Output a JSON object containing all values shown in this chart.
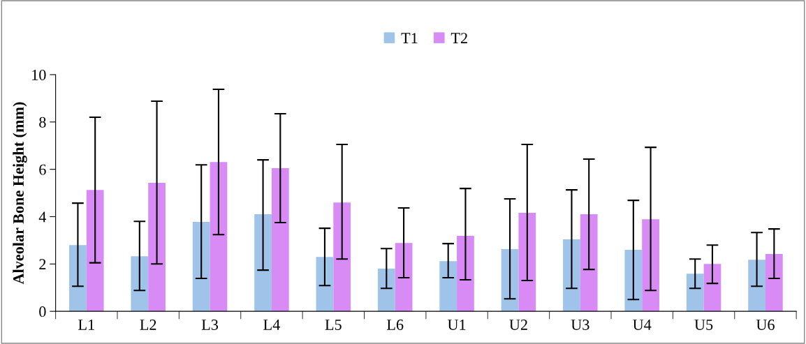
{
  "chart_data": {
    "type": "bar",
    "ylabel": "Alveolar Bone Height (mm)",
    "categories": [
      "L1",
      "L2",
      "L3",
      "L4",
      "L5",
      "L6",
      "U1",
      "U2",
      "U3",
      "U4",
      "U5",
      "U6"
    ],
    "series": [
      {
        "name": "T1",
        "color": "#9fc3e9",
        "values": [
          2.8,
          2.33,
          3.78,
          4.1,
          2.3,
          1.8,
          2.12,
          2.63,
          3.04,
          2.6,
          1.59,
          2.18
        ],
        "errors": [
          [
            1.06,
            4.57
          ],
          [
            0.88,
            3.8
          ],
          [
            1.39,
            6.19
          ],
          [
            1.74,
            6.4
          ],
          [
            1.09,
            3.51
          ],
          [
            0.97,
            2.65
          ],
          [
            1.42,
            2.86
          ],
          [
            0.53,
            4.75
          ],
          [
            0.97,
            5.13
          ],
          [
            0.5,
            4.69
          ],
          [
            0.97,
            2.21
          ],
          [
            1.06,
            3.33
          ]
        ]
      },
      {
        "name": "T2",
        "color": "#d98bf5",
        "values": [
          5.13,
          5.43,
          6.31,
          6.05,
          4.6,
          2.89,
          3.19,
          4.16,
          4.1,
          3.89,
          2.0,
          2.42
        ],
        "errors": [
          [
            2.05,
            8.2
          ],
          [
            2.0,
            8.88
          ],
          [
            3.24,
            9.38
          ],
          [
            3.75,
            8.35
          ],
          [
            2.21,
            7.05
          ],
          [
            1.42,
            4.37
          ],
          [
            1.33,
            5.19
          ],
          [
            1.3,
            7.05
          ],
          [
            1.77,
            6.43
          ],
          [
            0.88,
            6.93
          ],
          [
            1.18,
            2.8
          ],
          [
            1.39,
            3.48
          ]
        ]
      }
    ],
    "ylim": [
      0,
      10
    ],
    "yticks": [
      0,
      2,
      4,
      6,
      8,
      10
    ],
    "grid": false,
    "legend": "top"
  }
}
